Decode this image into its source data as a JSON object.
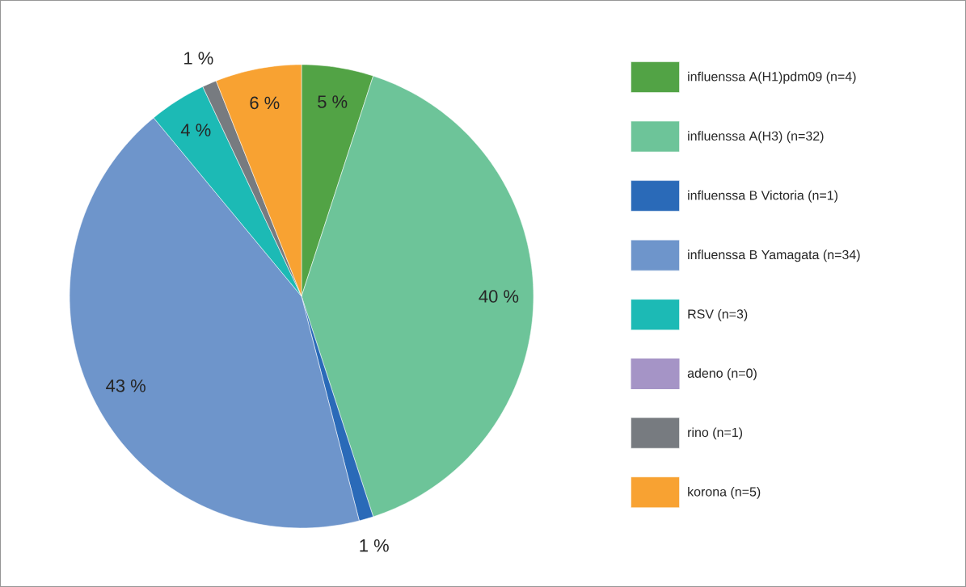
{
  "chart_data": {
    "type": "pie",
    "categories": [
      "influenssa A(H1)pdm09 (n=4)",
      "influenssa A(H3) (n=32)",
      "influenssa B Victoria (n=1)",
      "influenssa B Yamagata (n=34)",
      "RSV (n=3)",
      "adeno (n=0)",
      "rino (n=1)",
      "korona (n=5)"
    ],
    "values": [
      5,
      40,
      1,
      43,
      4,
      0,
      1,
      6
    ],
    "colors": [
      "#52a345",
      "#6dc499",
      "#2a6ab8",
      "#6e95cb",
      "#1cbab5",
      "#a594c6",
      "#777b80",
      "#f8a232"
    ],
    "value_labels": [
      "5 %",
      "40 %",
      "1 %",
      "43 %",
      "4 %",
      null,
      "1 %",
      "6 %"
    ],
    "legend": "right"
  }
}
